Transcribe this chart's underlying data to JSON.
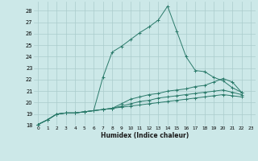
{
  "xlabel": "Humidex (Indice chaleur)",
  "ylabel": "",
  "background_color": "#cce8e8",
  "grid_color": "#aacccc",
  "line_color": "#2a7a6a",
  "xlim": [
    -0.5,
    23.5
  ],
  "ylim": [
    18,
    28.8
  ],
  "xticks": [
    0,
    1,
    2,
    3,
    4,
    5,
    6,
    7,
    8,
    9,
    10,
    11,
    12,
    13,
    14,
    15,
    16,
    17,
    18,
    19,
    20,
    21,
    22,
    23
  ],
  "yticks": [
    18,
    19,
    20,
    21,
    22,
    23,
    24,
    25,
    26,
    27,
    28
  ],
  "series": [
    {
      "x": [
        0,
        1,
        2,
        3,
        4,
        5,
        6,
        7,
        8,
        9,
        10,
        11,
        12,
        13,
        14,
        15,
        16,
        17,
        18,
        19,
        20,
        21,
        22
      ],
      "y": [
        18.1,
        18.5,
        19.0,
        19.1,
        19.1,
        19.2,
        19.3,
        22.2,
        24.4,
        24.9,
        25.5,
        26.1,
        26.6,
        27.2,
        28.4,
        26.2,
        24.0,
        22.8,
        22.7,
        22.2,
        21.9,
        21.3,
        20.9
      ]
    },
    {
      "x": [
        0,
        1,
        2,
        3,
        4,
        5,
        6,
        7,
        8,
        9,
        10,
        11,
        12,
        13,
        14,
        15,
        16,
        17,
        18,
        19,
        20,
        21,
        22
      ],
      "y": [
        18.1,
        18.5,
        19.0,
        19.1,
        19.1,
        19.2,
        19.3,
        19.4,
        19.5,
        19.9,
        20.3,
        20.5,
        20.7,
        20.8,
        21.0,
        21.1,
        21.2,
        21.4,
        21.5,
        21.8,
        22.1,
        21.8,
        20.9
      ]
    },
    {
      "x": [
        0,
        1,
        2,
        3,
        4,
        5,
        6,
        7,
        8,
        9,
        10,
        11,
        12,
        13,
        14,
        15,
        16,
        17,
        18,
        19,
        20,
        21,
        22
      ],
      "y": [
        18.1,
        18.5,
        19.0,
        19.1,
        19.1,
        19.2,
        19.3,
        19.4,
        19.5,
        19.7,
        19.9,
        20.1,
        20.2,
        20.4,
        20.5,
        20.6,
        20.7,
        20.8,
        20.9,
        21.0,
        21.1,
        20.9,
        20.7
      ]
    },
    {
      "x": [
        0,
        1,
        2,
        3,
        4,
        5,
        6,
        7,
        8,
        9,
        10,
        11,
        12,
        13,
        14,
        15,
        16,
        17,
        18,
        19,
        20,
        21,
        22
      ],
      "y": [
        18.1,
        18.5,
        19.0,
        19.1,
        19.1,
        19.2,
        19.3,
        19.4,
        19.5,
        19.6,
        19.7,
        19.8,
        19.9,
        20.0,
        20.1,
        20.2,
        20.3,
        20.4,
        20.5,
        20.6,
        20.7,
        20.6,
        20.5
      ]
    }
  ]
}
